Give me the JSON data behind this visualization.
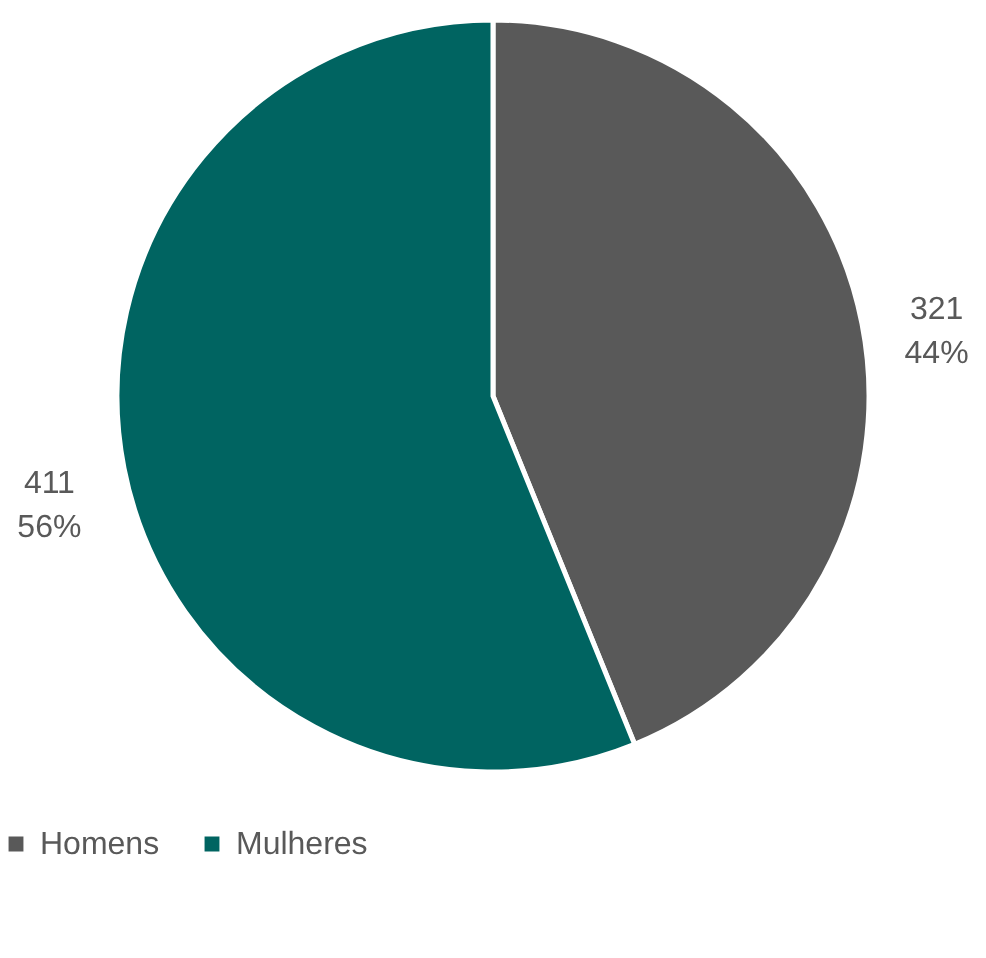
{
  "chart_data": {
    "type": "pie",
    "categories": [
      "Homens",
      "Mulheres"
    ],
    "values": [
      321,
      411
    ],
    "colors": [
      "#595959",
      "#006461"
    ],
    "value_labels": [
      "321\n44%",
      "411\n56%"
    ],
    "legend": "bottom"
  }
}
